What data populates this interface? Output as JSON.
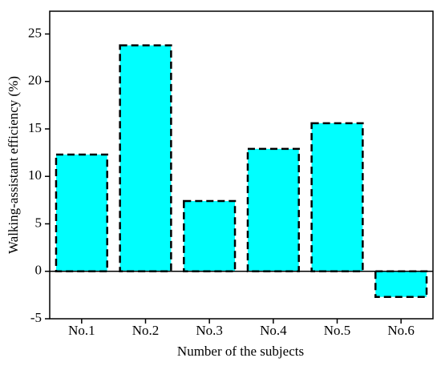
{
  "chart_data": {
    "type": "bar",
    "xlabel": "Number of the subjects",
    "ylabel": "Walking-assistant efficiency (%)",
    "categories": [
      "No.1",
      "No.2",
      "No.3",
      "No.4",
      "No.5",
      "No.6"
    ],
    "values": [
      12.3,
      23.8,
      7.4,
      12.9,
      15.6,
      -2.7
    ],
    "color": "#00ffff",
    "edgecolor": "#000000",
    "ylim": [
      -5,
      27.4
    ],
    "yticks": [
      -5,
      0,
      5,
      10,
      15,
      20,
      25
    ]
  }
}
